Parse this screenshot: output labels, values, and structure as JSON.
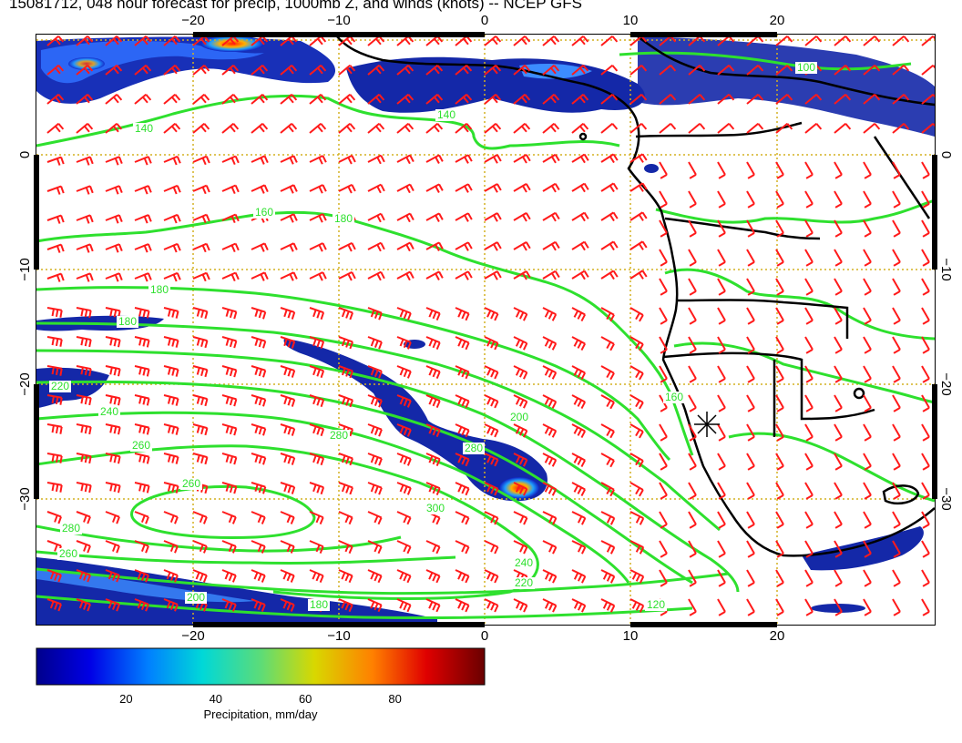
{
  "title": "15081712, 048 hour forecast for precip, 1000mb Z, and winds (knots) -- NCEP GFS",
  "lon_ticks": [
    "−20",
    "−10",
    "0",
    "10",
    "20"
  ],
  "lat_ticks": [
    "0",
    "−10",
    "−20",
    "−30"
  ],
  "lon_range": [
    -30,
    30
  ],
  "lat_range": [
    -39.8,
    9.8
  ],
  "colorbar": {
    "label": "Precipitation, mm/day",
    "ticks": [
      "20",
      "40",
      "60",
      "80"
    ],
    "tick_values": [
      20,
      40,
      60,
      80
    ],
    "range": [
      0,
      100
    ]
  },
  "contour_labels": [
    "100",
    "140",
    "140",
    "160",
    "180",
    "180",
    "180",
    "200",
    "220",
    "240",
    "260",
    "260",
    "280",
    "280",
    "300",
    "280",
    "260",
    "240",
    "220",
    "200",
    "180",
    "160",
    "120"
  ],
  "colors": {
    "contour": "#2ee02e",
    "wind_barb": "#ff1a1a",
    "grid": "#d4b020",
    "coast": "#000000",
    "precip_low": "#00008c",
    "precip_high": "#7a0000"
  },
  "marker": {
    "symbol": "asterisk",
    "lon": 15,
    "lat": -23
  }
}
